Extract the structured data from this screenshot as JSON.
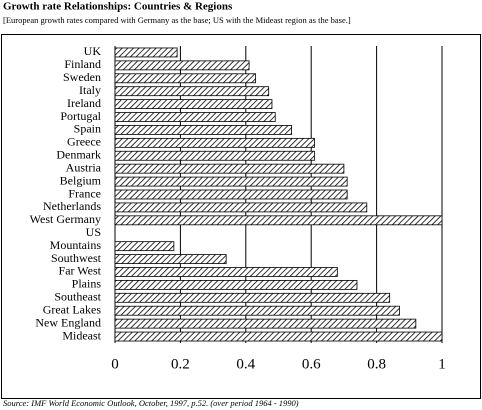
{
  "chart_data": {
    "type": "hbar",
    "title": "Growth rate Relationships:  Countries & Regions",
    "subtitle": "[European growth rates compared with Germany as the base;  US with the Mideast region as the base.]",
    "source": "Source:  IMF  World Economic Outlook, October, 1997, p.52. (over period 1964 - 1990)",
    "categories": [
      "UK",
      "Finland",
      "Sweden",
      "Italy",
      "Ireland",
      "Portugal",
      "Spain",
      "Greece",
      "Denmark",
      "Austria",
      "Belgium",
      "France",
      "Netherlands",
      "West Germany",
      "US",
      "Mountains",
      "Southwest",
      "Far West",
      "Plains",
      "Southeast",
      "Great Lakes",
      "New England",
      "Mideast"
    ],
    "values": [
      0.19,
      0.41,
      0.43,
      0.47,
      0.48,
      0.49,
      0.54,
      0.61,
      0.61,
      0.7,
      0.71,
      0.71,
      0.77,
      1.0,
      null,
      0.18,
      0.34,
      0.68,
      0.74,
      0.84,
      0.87,
      0.92,
      1.0
    ],
    "color": "#000000",
    "xlim": [
      0,
      1
    ],
    "xticks": [
      0,
      0.2,
      0.4,
      0.6,
      0.8,
      1
    ],
    "grid": true
  }
}
